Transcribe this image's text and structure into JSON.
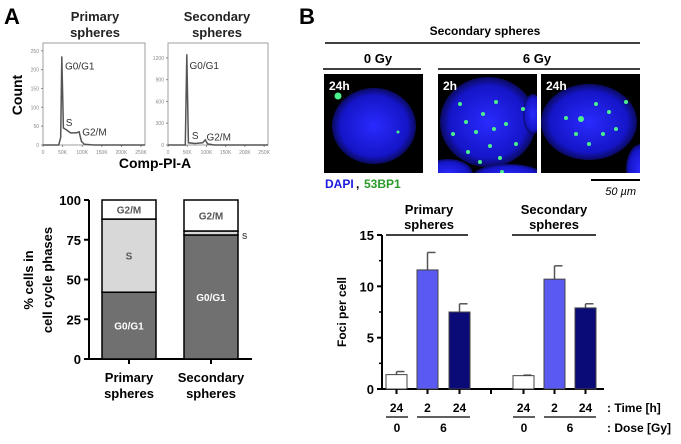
{
  "panels": {
    "a": "A",
    "b": "B"
  },
  "chart_data": [
    {
      "type": "line",
      "title": "Primary spheres",
      "title_lines": [
        "Primary",
        "spheres"
      ],
      "xlabel": "Comp-PI-A",
      "ylabel": "Count",
      "xlim": [
        0,
        260
      ],
      "ylim": [
        0,
        260
      ],
      "xticks": [
        "0",
        "50K",
        "100K",
        "150K",
        "200K",
        "250K"
      ],
      "xtick_values": [
        0,
        50,
        100,
        150,
        200,
        250
      ],
      "yticks": [
        "0",
        "50",
        "100",
        "150",
        "200",
        "250"
      ],
      "ytick_values": [
        0,
        50,
        100,
        150,
        200,
        250
      ],
      "x": [
        0,
        40,
        45,
        48,
        52,
        60,
        70,
        85,
        92,
        98,
        105,
        130,
        260
      ],
      "y": [
        0,
        0,
        20,
        235,
        45,
        40,
        32,
        32,
        35,
        10,
        2,
        0,
        0
      ],
      "annotations": [
        {
          "text": "G0/G1",
          "x": 56,
          "y": 200
        },
        {
          "text": "S",
          "x": 58,
          "y": 50
        },
        {
          "text": "G2/M",
          "x": 100,
          "y": 25
        }
      ],
      "color": "#555555"
    },
    {
      "type": "line",
      "title": "Secondary spheres",
      "title_lines": [
        "Secondary",
        "spheres"
      ],
      "xlabel": "Comp-PI-A",
      "ylabel": "Count",
      "xlim": [
        0,
        260
      ],
      "ylim": [
        0,
        1350
      ],
      "xticks": [
        "0",
        "50K",
        "100K",
        "150K",
        "200K",
        "250K"
      ],
      "xtick_values": [
        0,
        50,
        100,
        150,
        200,
        250
      ],
      "yticks": [
        "0",
        "300",
        "600",
        "900",
        "1200"
      ],
      "ytick_values": [
        0,
        300,
        600,
        900,
        1200
      ],
      "x": [
        0,
        45,
        49,
        53,
        70,
        90,
        97,
        103,
        120,
        260
      ],
      "y": [
        0,
        0,
        1250,
        30,
        20,
        30,
        70,
        15,
        0,
        0
      ],
      "annotations": [
        {
          "text": "G0/G1",
          "x": 56,
          "y": 1050
        },
        {
          "text": "S",
          "x": 62,
          "y": 80
        },
        {
          "text": "G2/M",
          "x": 100,
          "y": 60
        }
      ],
      "color": "#555555"
    },
    {
      "type": "bar",
      "stacked": true,
      "categories": [
        "Primary spheres",
        "Secondary spheres"
      ],
      "category_lines": [
        [
          "Primary",
          "spheres"
        ],
        [
          "Secondary",
          "spheres"
        ]
      ],
      "ylabel_lines": [
        "% cells in",
        "cell cycle phases"
      ],
      "ylim": [
        0,
        100
      ],
      "yticks": [
        "0",
        "25",
        "50",
        "75",
        "100"
      ],
      "ytick_values": [
        0,
        25,
        50,
        75,
        100
      ],
      "series": [
        {
          "name": "G0/G1",
          "values": [
            42,
            78
          ],
          "color": "#707070",
          "label_color": "#ffffff"
        },
        {
          "name": "S",
          "values": [
            46,
            2.5
          ],
          "color": "#d8d8d8",
          "label_color": "#555555"
        },
        {
          "name": "G2/M",
          "values": [
            12,
            19.5
          ],
          "color": "#ffffff",
          "label_color": "#555555"
        }
      ]
    },
    {
      "type": "bar",
      "ylabel": "Foci per cell",
      "ylim": [
        0,
        15
      ],
      "yticks": [
        "0",
        "5",
        "10",
        "15"
      ],
      "ytick_values": [
        0,
        5,
        10,
        15
      ],
      "groups": [
        {
          "title_lines": [
            "Primary",
            "spheres"
          ]
        },
        {
          "title_lines": [
            "Secondary",
            "spheres"
          ]
        }
      ],
      "time_label": ": Time [h]",
      "dose_label": ": Dose [Gy]",
      "time_values": [
        "24",
        "2",
        "24",
        "24",
        "2",
        "24"
      ],
      "dose_values": [
        "0",
        "6",
        "0",
        "6"
      ],
      "values": [
        1.4,
        11.6,
        7.5,
        1.3,
        10.7,
        7.9
      ],
      "errors": [
        0.3,
        1.7,
        0.8,
        0.05,
        1.3,
        0.4
      ],
      "colors": [
        "#ffffff",
        "#5a5af2",
        "#0b0b78",
        "#ffffff",
        "#5a5af2",
        "#0b0b78"
      ]
    }
  ],
  "microscopy": {
    "title": "Secondary spheres",
    "dose_0": "0 Gy",
    "dose_6": "6 Gy",
    "images": [
      {
        "label": "24h"
      },
      {
        "label": "2h"
      },
      {
        "label": "24h"
      }
    ],
    "legend_dapi": "DAPI",
    "legend_sep": ", ",
    "legend_53bp1": "53BP1",
    "dapi_color": "#1a1adc",
    "bp1_color": "#2a9a2a",
    "scale_bar": "50 µm"
  }
}
